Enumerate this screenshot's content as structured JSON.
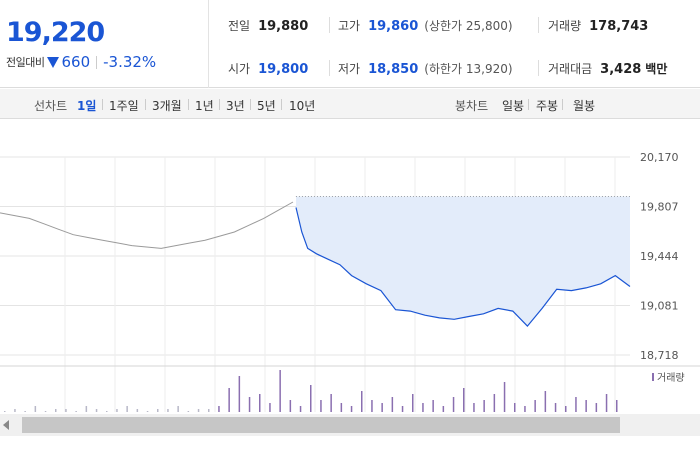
{
  "quote": {
    "price": "19,220",
    "change_label": "전일대비",
    "change_icon": "down-triangle-icon",
    "change": "660",
    "change_pct": "-3.32%",
    "prev_close_label": "전일",
    "prev_close": "19,880",
    "open_label": "시가",
    "open": "19,800",
    "high_label": "고가",
    "high": "19,860",
    "upper_limit": "(상한가 25,800)",
    "low_label": "저가",
    "low": "18,850",
    "lower_limit": "(하한가 13,920)",
    "volume_label": "거래량",
    "volume": "178,743",
    "amount_label": "거래대금",
    "amount": "3,428",
    "amount_unit": "백만",
    "accent_color": "#1a55d4"
  },
  "toolbar": {
    "line_chart_label": "선차트",
    "periods": [
      "1일",
      "1주일",
      "3개월",
      "1년",
      "3년",
      "5년",
      "10년"
    ],
    "active_period": "1일",
    "candle_label": "봉차트",
    "candles": [
      "일봉",
      "주봉",
      "월봉"
    ]
  },
  "chart_data": {
    "type": "line",
    "title": "",
    "xlabel": "",
    "ylabel": "",
    "ylim": [
      18718,
      20170
    ],
    "y_ticks": [
      "20,170",
      "19,807",
      "19,444",
      "19,081",
      "18,718"
    ],
    "reference_price": 19880,
    "series": [
      {
        "name": "",
        "color": "#9a9a9a",
        "x": [
          0,
          5,
          10,
          15,
          20,
          25,
          30,
          35,
          40,
          45,
          50,
          55,
          60,
          65,
          70,
          75,
          80,
          85,
          90,
          95,
          100
        ],
        "values": [
          19760,
          19740,
          19720,
          19680,
          19640,
          19600,
          19580,
          19560,
          19540,
          19520,
          19510,
          19500,
          19520,
          19540,
          19560,
          19590,
          19620,
          19670,
          19720,
          19780,
          19840
        ]
      },
      {
        "name": "",
        "color": "#1a55d4",
        "x": [
          101,
          103,
          105,
          108,
          112,
          116,
          120,
          125,
          130,
          135,
          140,
          145,
          150,
          155,
          160,
          165,
          170,
          175,
          180,
          185,
          190,
          195,
          200,
          205,
          210,
          215
        ],
        "values": [
          19800,
          19620,
          19500,
          19460,
          19420,
          19380,
          19300,
          19240,
          19190,
          19050,
          19040,
          19010,
          18990,
          18980,
          19000,
          19020,
          19060,
          19040,
          18930,
          19060,
          19200,
          19190,
          19210,
          19240,
          19300,
          19220
        ]
      }
    ],
    "volume_legend": "거래량",
    "volume": [
      0,
      1,
      0,
      2,
      0,
      1,
      1,
      0,
      2,
      1,
      0,
      1,
      2,
      1,
      0,
      1,
      1,
      2,
      0,
      1,
      1,
      2,
      8,
      12,
      5,
      6,
      3,
      14,
      4,
      2,
      9,
      4,
      6,
      3,
      2,
      7,
      4,
      3,
      5,
      2,
      6,
      3,
      4,
      2,
      5,
      8,
      3,
      4,
      6,
      10,
      3,
      2,
      4,
      7,
      3,
      2,
      5,
      4,
      3,
      6,
      4
    ]
  },
  "scrollbar": {
    "left_icon": "arrow-left-icon"
  }
}
